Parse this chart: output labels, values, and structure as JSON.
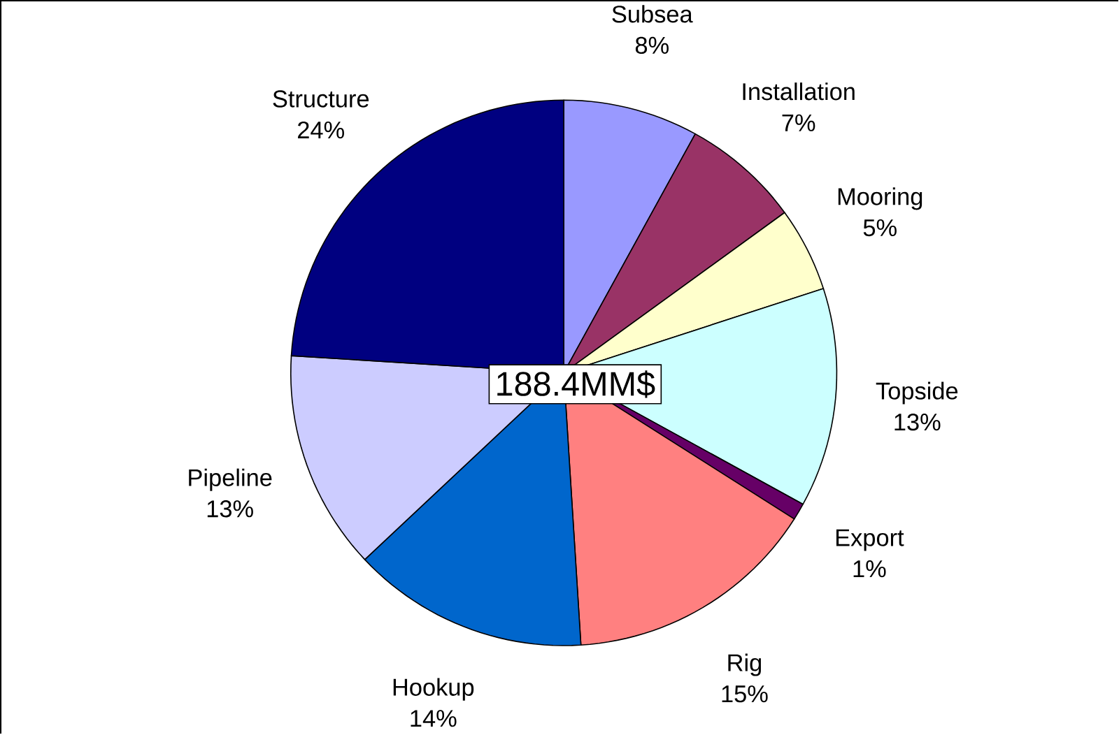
{
  "chart_data": {
    "type": "pie",
    "categories": [
      "Subsea",
      "Installation",
      "Mooring",
      "Topside",
      "Export",
      "Rig",
      "Hookup",
      "Pipeline",
      "Structure"
    ],
    "values": [
      8,
      7,
      5,
      13,
      1,
      15,
      14,
      13,
      24
    ],
    "value_labels": [
      "8%",
      "7%",
      "5%",
      "13%",
      "1%",
      "15%",
      "14%",
      "13%",
      "24%"
    ],
    "colors": [
      "#9999ff",
      "#993366",
      "#ffffcc",
      "#ccffff",
      "#660066",
      "#ff8080",
      "#0066cc",
      "#ccccff",
      "#000080"
    ],
    "annotations": [
      "188.4MM$"
    ]
  }
}
